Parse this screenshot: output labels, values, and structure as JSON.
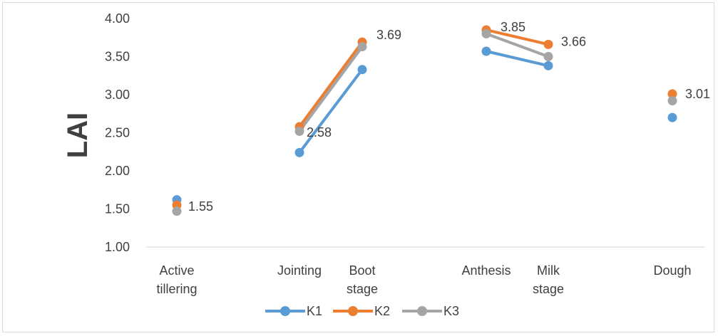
{
  "chart_data": {
    "type": "line",
    "title": "",
    "xlabel": "",
    "ylabel": "LAI",
    "ylim": [
      1.0,
      4.0
    ],
    "yticks": [
      "1.00",
      "1.50",
      "2.00",
      "2.50",
      "3.00",
      "3.50",
      "4.00"
    ],
    "categories": [
      [
        "Active",
        "tillering"
      ],
      [
        "Jointing"
      ],
      [
        "Boot",
        "stage"
      ],
      [
        "Anthesis"
      ],
      [
        "Milk",
        "stage"
      ],
      [
        "Dough"
      ]
    ],
    "segments": [
      [
        1,
        2
      ],
      [
        3,
        4
      ]
    ],
    "series": [
      {
        "name": "K1",
        "color": "#5B9BD5",
        "values": [
          1.62,
          2.24,
          3.33,
          3.57,
          3.38,
          2.7
        ]
      },
      {
        "name": "K2",
        "color": "#ED7D31",
        "values": [
          1.55,
          2.58,
          3.69,
          3.85,
          3.66,
          3.01
        ]
      },
      {
        "name": "K3",
        "color": "#A5A5A5",
        "values": [
          1.47,
          2.52,
          3.63,
          3.8,
          3.5,
          2.92
        ]
      }
    ],
    "data_labels": [
      "1.55",
      "2.58",
      "3.69",
      "3.85",
      "3.66",
      "3.01"
    ],
    "legend": {
      "position": "bottom",
      "entries": [
        "K1",
        "K2",
        "K3"
      ]
    },
    "grid": false
  }
}
